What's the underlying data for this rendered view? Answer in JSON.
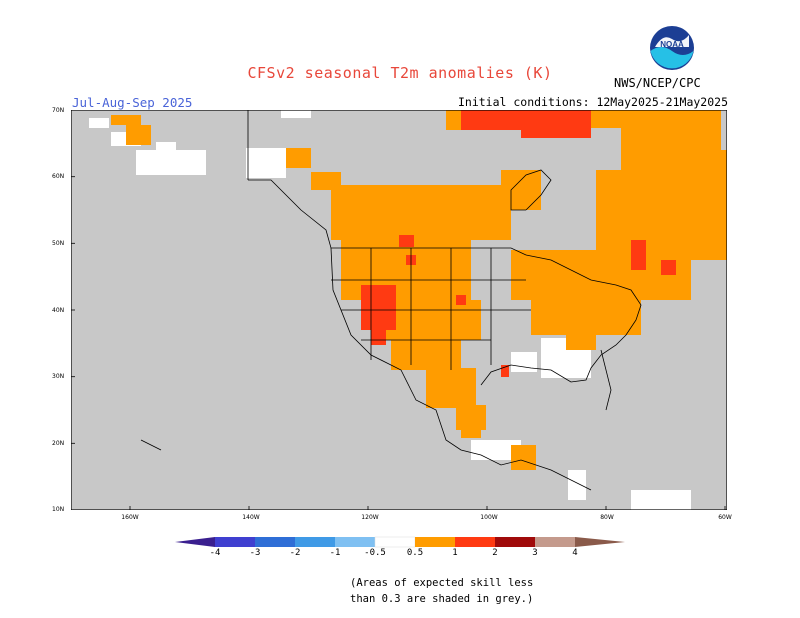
{
  "header": {
    "title": "CFSv2 seasonal T2m anomalies (K)",
    "period": "Jul-Aug-Sep 2025",
    "initial_conditions": "Initial conditions: 12May2025-21May2025",
    "agency": "NWS/NCEP/CPC",
    "logo_text": "NOAA"
  },
  "map": {
    "lat_labels": [
      "70N",
      "60N",
      "50N",
      "40N",
      "30N",
      "20N",
      "10N"
    ],
    "lon_labels": [
      "160W",
      "140W",
      "120W",
      "100W",
      "80W",
      "60W"
    ],
    "background_color": "#c8c8c8",
    "border_color": "#000000"
  },
  "legend": {
    "ticks": [
      "-4",
      "-3",
      "-2",
      "-1",
      "-0.5",
      "0.5",
      "1",
      "2",
      "3",
      "4"
    ],
    "bins": [
      {
        "range": "< -4",
        "color": "#3a1f8f"
      },
      {
        "range": "-4 to -3",
        "color": "#3f3fd0"
      },
      {
        "range": "-3 to -2",
        "color": "#2f6ed6"
      },
      {
        "range": "-2 to -1",
        "color": "#3f9ae6"
      },
      {
        "range": "-1 to -0.5",
        "color": "#7fc0f2"
      },
      {
        "range": "-0.5 to 0.5",
        "color": "#ffffff"
      },
      {
        "range": "0.5 to 1",
        "color": "#ff9c00"
      },
      {
        "range": "1 to 2",
        "color": "#ff3a12"
      },
      {
        "range": "2 to 3",
        "color": "#a00a0a"
      },
      {
        "range": "3 to 4",
        "color": "#c49a8c"
      },
      {
        "range": "> 4",
        "color": "#8a5a4a"
      }
    ]
  },
  "note": {
    "line1": "(Areas of expected skill less",
    "line2": "than 0.3 are shaded in grey.)"
  }
}
